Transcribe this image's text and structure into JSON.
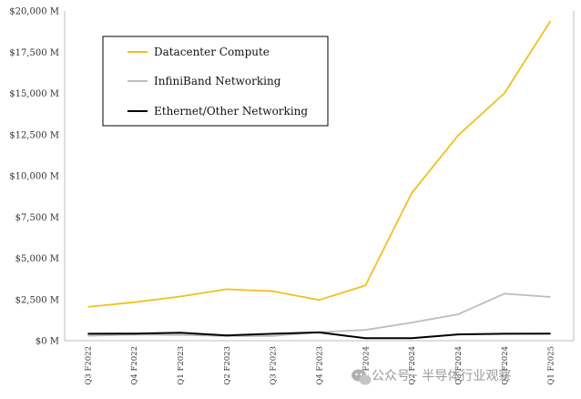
{
  "chart_data": {
    "type": "line",
    "categories": [
      "Q3 F2022",
      "Q4 F2022",
      "Q1 F2023",
      "Q2 F2023",
      "Q3 F2023",
      "Q4 F2023",
      "Q1 F2024",
      "Q2 F2024",
      "Q3 F2024",
      "Q4 F2024",
      "Q1 F2025"
    ],
    "series": [
      {
        "name": "Datacenter Compute",
        "color": "#f0c020",
        "values": [
          2050,
          2330,
          2680,
          3120,
          3000,
          2470,
          3350,
          8950,
          12450,
          15000,
          19400
        ]
      },
      {
        "name": "InfiniBand Networking",
        "color": "#bdbdbd",
        "values": [
          300,
          370,
          350,
          280,
          280,
          520,
          650,
          1100,
          1600,
          2850,
          2650
        ]
      },
      {
        "name": "Ethernet/Other Networking",
        "color": "#000000",
        "values": [
          420,
          430,
          480,
          320,
          420,
          500,
          150,
          150,
          380,
          420,
          430
        ]
      }
    ],
    "yticks": [
      "$0 M",
      "$2,500 M",
      "$5,000 M",
      "$7,500 M",
      "$10,000 M",
      "$12,500 M",
      "$15,000 M",
      "$17,500 M",
      "$20,000 M"
    ],
    "ylim": [
      0,
      20000
    ],
    "legend_position": "top-left",
    "grid": false
  },
  "watermark": {
    "icon": "wechat-icon",
    "text": "公众号 · 半导体行业观察"
  }
}
